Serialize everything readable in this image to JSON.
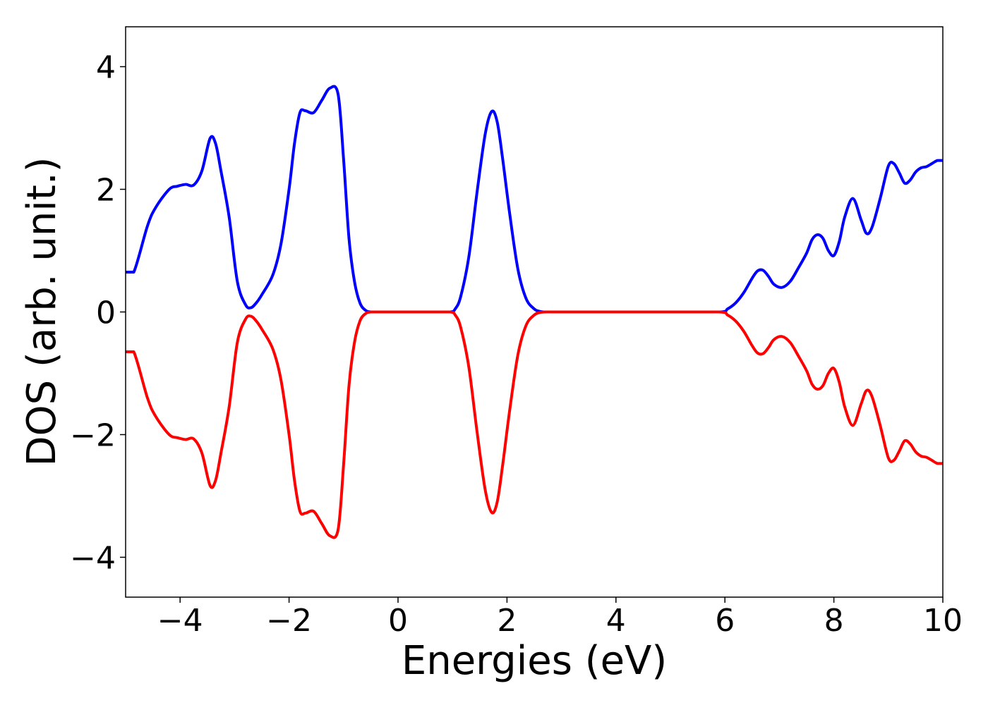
{
  "chart_data": {
    "type": "line",
    "title": "",
    "xlabel": "Energies (eV)",
    "ylabel": "DOS (arb. unit.)",
    "xlim": [
      -5,
      10
    ],
    "ylim": [
      -4.65,
      4.65
    ],
    "grid": false,
    "legend": "none",
    "x_ticks": [
      {
        "value": -4,
        "label": "−4"
      },
      {
        "value": -2,
        "label": "−2"
      },
      {
        "value": 0,
        "label": "0"
      },
      {
        "value": 2,
        "label": "2"
      },
      {
        "value": 4,
        "label": "4"
      },
      {
        "value": 6,
        "label": "6"
      },
      {
        "value": 8,
        "label": "8"
      },
      {
        "value": 10,
        "label": "10"
      }
    ],
    "y_ticks": [
      {
        "value": -4,
        "label": "−4"
      },
      {
        "value": -2,
        "label": "−2"
      },
      {
        "value": 0,
        "label": "0"
      },
      {
        "value": 2,
        "label": "2"
      },
      {
        "value": 4,
        "label": "4"
      }
    ],
    "series": [
      {
        "color": "#0000ff",
        "x": [
          -5.0,
          -4.85,
          -4.6,
          -4.45,
          -4.2,
          -4.05,
          -3.9,
          -3.75,
          -3.6,
          -3.45,
          -3.35,
          -3.25,
          -3.1,
          -2.95,
          -2.8,
          -2.7,
          -2.6,
          -2.5,
          -2.3,
          -2.15,
          -2.0,
          -1.9,
          -1.8,
          -1.7,
          -1.55,
          -1.4,
          -1.25,
          -1.1,
          -1.0,
          -0.9,
          -0.8,
          -0.7,
          -0.6,
          -0.5,
          -0.3,
          0.0,
          0.5,
          0.95,
          1.05,
          1.15,
          1.3,
          1.45,
          1.6,
          1.72,
          1.82,
          1.92,
          2.05,
          2.2,
          2.35,
          2.5,
          2.6,
          2.7,
          3.0,
          4.0,
          5.0,
          5.9,
          6.05,
          6.2,
          6.35,
          6.5,
          6.6,
          6.7,
          6.8,
          6.9,
          7.05,
          7.2,
          7.35,
          7.5,
          7.6,
          7.7,
          7.8,
          7.9,
          8.0,
          8.1,
          8.2,
          8.35,
          8.5,
          8.6,
          8.7,
          8.85,
          9.0,
          9.1,
          9.2,
          9.3,
          9.4,
          9.5,
          9.6,
          9.7,
          9.8,
          9.9,
          10.0
        ],
        "values": [
          0.65,
          0.65,
          1.4,
          1.7,
          2.0,
          2.05,
          2.08,
          2.07,
          2.3,
          2.83,
          2.75,
          2.3,
          1.55,
          0.5,
          0.12,
          0.07,
          0.15,
          0.28,
          0.6,
          1.1,
          2.0,
          2.75,
          3.25,
          3.28,
          3.25,
          3.45,
          3.65,
          3.55,
          2.5,
          1.2,
          0.5,
          0.15,
          0.03,
          0.0,
          0.0,
          0.0,
          0.0,
          0.0,
          0.05,
          0.25,
          0.9,
          1.95,
          2.9,
          3.27,
          3.1,
          2.5,
          1.6,
          0.7,
          0.22,
          0.05,
          0.01,
          0.0,
          0.0,
          0.0,
          0.0,
          0.0,
          0.05,
          0.15,
          0.32,
          0.55,
          0.67,
          0.68,
          0.58,
          0.45,
          0.4,
          0.5,
          0.72,
          0.96,
          1.18,
          1.26,
          1.2,
          1.0,
          0.92,
          1.15,
          1.55,
          1.85,
          1.5,
          1.28,
          1.38,
          1.85,
          2.38,
          2.42,
          2.27,
          2.1,
          2.15,
          2.28,
          2.35,
          2.37,
          2.42,
          2.47,
          2.47
        ]
      },
      {
        "color": "#ff0000",
        "x": [
          -5.0,
          -4.85,
          -4.6,
          -4.45,
          -4.2,
          -4.05,
          -3.9,
          -3.75,
          -3.6,
          -3.45,
          -3.35,
          -3.25,
          -3.1,
          -2.95,
          -2.8,
          -2.7,
          -2.6,
          -2.5,
          -2.3,
          -2.15,
          -2.0,
          -1.9,
          -1.8,
          -1.7,
          -1.55,
          -1.4,
          -1.25,
          -1.1,
          -1.0,
          -0.9,
          -0.8,
          -0.7,
          -0.6,
          -0.5,
          -0.3,
          0.0,
          0.5,
          0.95,
          1.05,
          1.15,
          1.3,
          1.45,
          1.6,
          1.72,
          1.82,
          1.92,
          2.05,
          2.2,
          2.35,
          2.5,
          2.6,
          2.7,
          3.0,
          4.0,
          5.0,
          5.9,
          6.05,
          6.2,
          6.35,
          6.5,
          6.6,
          6.7,
          6.8,
          6.9,
          7.05,
          7.2,
          7.35,
          7.5,
          7.6,
          7.7,
          7.8,
          7.9,
          8.0,
          8.1,
          8.2,
          8.35,
          8.5,
          8.6,
          8.7,
          8.85,
          9.0,
          9.1,
          9.2,
          9.3,
          9.4,
          9.5,
          9.6,
          9.7,
          9.8,
          9.9,
          10.0
        ],
        "values": [
          -0.65,
          -0.65,
          -1.4,
          -1.7,
          -2.0,
          -2.05,
          -2.08,
          -2.07,
          -2.3,
          -2.83,
          -2.75,
          -2.3,
          -1.55,
          -0.5,
          -0.12,
          -0.07,
          -0.15,
          -0.28,
          -0.6,
          -1.1,
          -2.0,
          -2.75,
          -3.25,
          -3.28,
          -3.25,
          -3.45,
          -3.65,
          -3.55,
          -2.5,
          -1.2,
          -0.5,
          -0.15,
          -0.03,
          0.0,
          0.0,
          0.0,
          0.0,
          0.0,
          -0.05,
          -0.25,
          -0.9,
          -1.95,
          -2.9,
          -3.27,
          -3.1,
          -2.5,
          -1.6,
          -0.7,
          -0.22,
          -0.05,
          -0.01,
          0.0,
          0.0,
          0.0,
          0.0,
          0.0,
          -0.05,
          -0.15,
          -0.32,
          -0.55,
          -0.67,
          -0.68,
          -0.58,
          -0.45,
          -0.4,
          -0.5,
          -0.72,
          -0.96,
          -1.18,
          -1.26,
          -1.2,
          -1.0,
          -0.92,
          -1.15,
          -1.55,
          -1.85,
          -1.5,
          -1.28,
          -1.38,
          -1.85,
          -2.38,
          -2.42,
          -2.27,
          -2.1,
          -2.15,
          -2.28,
          -2.35,
          -2.37,
          -2.42,
          -2.47,
          -2.47
        ]
      }
    ]
  }
}
